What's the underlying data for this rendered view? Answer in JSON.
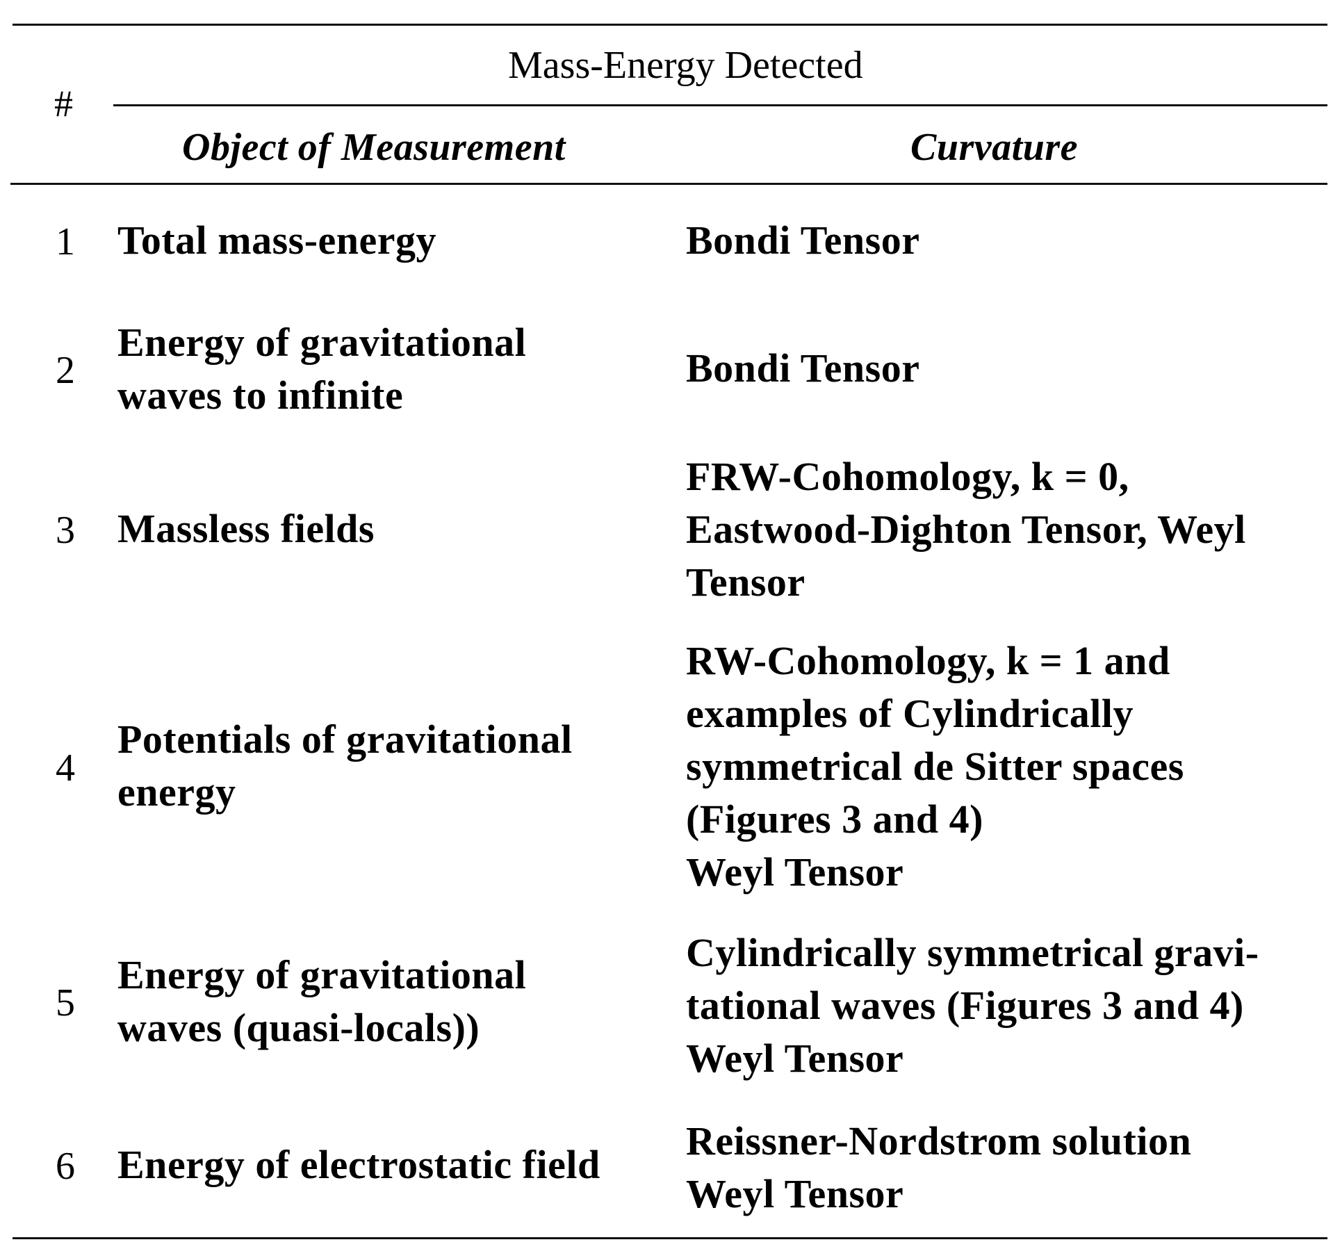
{
  "table": {
    "header": {
      "number_label": "#",
      "group_label": "Mass-Energy Detected",
      "col_object": "Object of Measurement",
      "col_curvature": "Curvature"
    },
    "rows": [
      {
        "number": "1",
        "object": [
          "Total mass-energy"
        ],
        "curvature": [
          "Bondi Tensor"
        ]
      },
      {
        "number": "2",
        "object": [
          "Energy of gravitational",
          "waves to infinite"
        ],
        "curvature": [
          "Bondi Tensor"
        ]
      },
      {
        "number": "3",
        "object": [
          "Massless fields"
        ],
        "curvature": [
          "FRW-Cohomology, k = 0,",
          "Eastwood-Dighton Tensor, Weyl",
          "Tensor"
        ]
      },
      {
        "number": "4",
        "object": [
          "Potentials of gravitational",
          "energy"
        ],
        "curvature": [
          "RW-Cohomology, k = 1 and",
          "examples of Cylindrically",
          "symmetrical de Sitter spaces",
          "(Figures 3 and 4)",
          "Weyl Tensor"
        ]
      },
      {
        "number": "5",
        "object": [
          "Energy of gravitational",
          "waves (quasi-locals))"
        ],
        "curvature": [
          "Cylindrically symmetrical gravi-",
          "tational waves (Figures 3 and 4)",
          "Weyl Tensor"
        ]
      },
      {
        "number": "6",
        "object": [
          "Energy of electrostatic field"
        ],
        "curvature": [
          "Reissner-Nordstrom solution",
          "Weyl Tensor"
        ]
      }
    ]
  }
}
